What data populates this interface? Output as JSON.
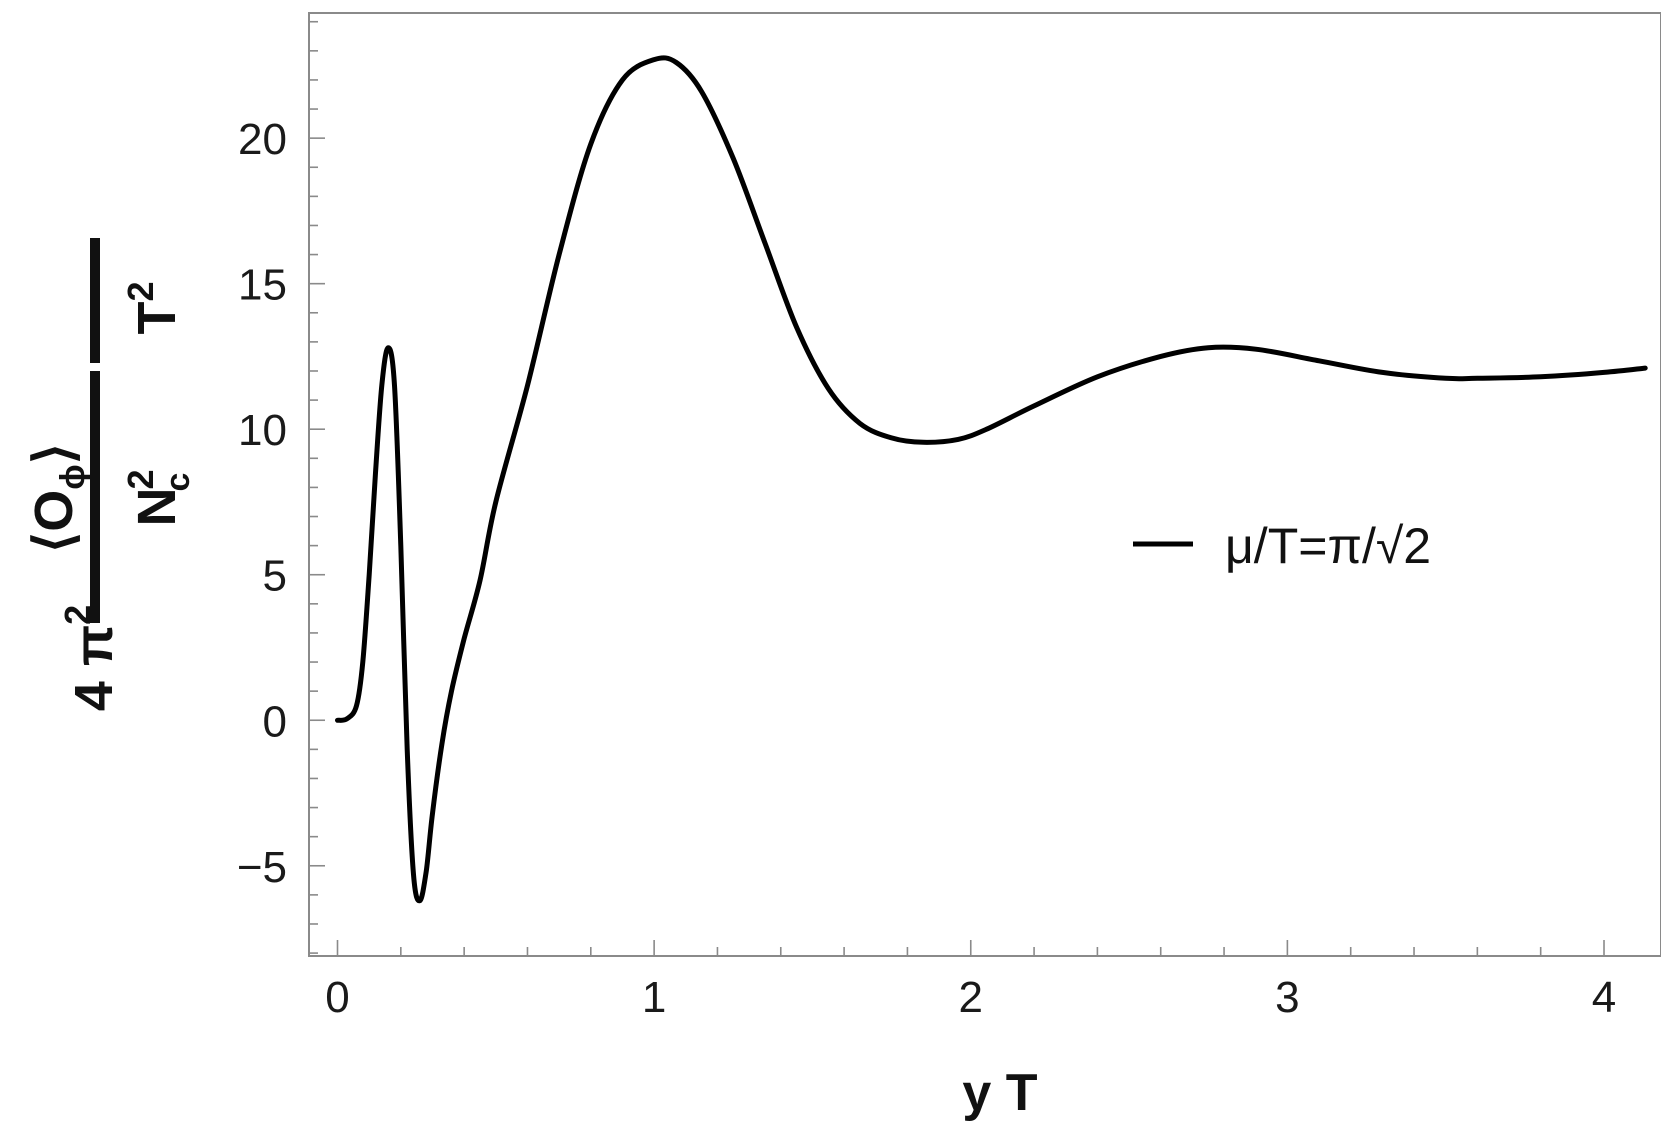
{
  "chart_data": {
    "type": "line",
    "xlabel": "y T",
    "ylabel": {
      "prefix": "4 π",
      "prefix_sup": "2",
      "numerator": "⟨O",
      "numerator_sub": "ϕ",
      "numerator_close": "⟩",
      "denominator": "N",
      "denominator_sup": "2",
      "denominator_sub": "c",
      "factor": "T",
      "factor_sup": "2"
    },
    "xlim": [
      -0.09,
      4.18
    ],
    "ylim": [
      -8.1,
      24.3
    ],
    "x_ticks": [
      0,
      1,
      2,
      3,
      4
    ],
    "y_ticks": [
      -5,
      0,
      5,
      10,
      15,
      20
    ],
    "x_tick_labels": [
      "0",
      "1",
      "2",
      "3",
      "4"
    ],
    "y_tick_labels": [
      "−5",
      "0",
      "5",
      "10",
      "15",
      "20"
    ],
    "x_minor_step": 0.2,
    "y_minor_step": 1,
    "grid": false,
    "legend_position": "right",
    "series": [
      {
        "name": "μ/T=π/√2",
        "color": "#000000",
        "x": [
          0,
          0.03,
          0.06,
          0.08,
          0.1,
          0.12,
          0.14,
          0.16,
          0.18,
          0.2,
          0.22,
          0.24,
          0.26,
          0.28,
          0.3,
          0.33,
          0.36,
          0.4,
          0.45,
          0.5,
          0.6,
          0.7,
          0.8,
          0.9,
          1.0,
          1.07,
          1.15,
          1.25,
          1.35,
          1.45,
          1.55,
          1.65,
          1.75,
          1.85,
          1.96,
          2.05,
          2.2,
          2.4,
          2.6,
          2.75,
          2.9,
          3.1,
          3.3,
          3.5,
          3.6,
          3.8,
          4.0,
          4.2
        ],
        "y": [
          0,
          0.05,
          0.5,
          2.0,
          5.0,
          8.5,
          11.5,
          12.8,
          11.5,
          6.0,
          -1.0,
          -5.3,
          -6.2,
          -5.2,
          -3.2,
          -0.8,
          1.0,
          2.8,
          4.8,
          7.5,
          11.5,
          16.0,
          19.8,
          22.0,
          22.7,
          22.6,
          21.6,
          19.3,
          16.4,
          13.5,
          11.4,
          10.2,
          9.7,
          9.55,
          9.65,
          10.0,
          10.8,
          11.8,
          12.5,
          12.8,
          12.75,
          12.35,
          11.95,
          11.75,
          11.75,
          11.8,
          11.95,
          12.1
        ]
      }
    ]
  }
}
